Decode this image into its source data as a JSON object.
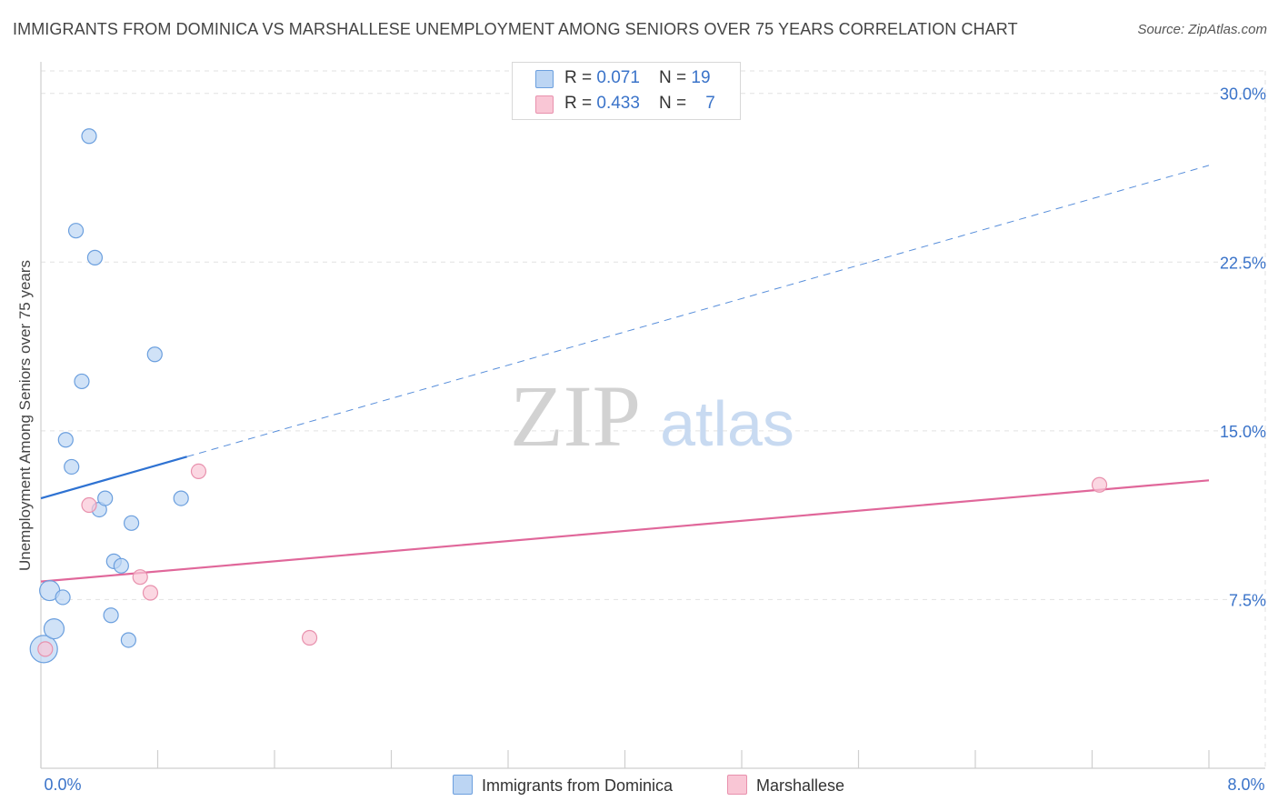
{
  "title": "IMMIGRANTS FROM DOMINICA VS MARSHALLESE UNEMPLOYMENT AMONG SENIORS OVER 75 YEARS CORRELATION CHART",
  "source": "Source: ZipAtlas.com",
  "watermark": {
    "zip": "ZIP",
    "atlas": "atlas"
  },
  "colors": {
    "blue_fill": "#bcd5f3",
    "blue_stroke": "#6b9fde",
    "blue_line": "#2e72d2",
    "pink_fill": "#f9c6d5",
    "pink_stroke": "#e891ad",
    "pink_line": "#e0679a",
    "tick_label": "#3a73c9",
    "grid": "#e2e2e2"
  },
  "legend_top": [
    {
      "r_label": "R = ",
      "r_value": "0.071",
      "n_label": "N = ",
      "n_value": "19"
    },
    {
      "r_label": "R = ",
      "r_value": "0.433",
      "n_label": "N = ",
      "n_value": "7"
    }
  ],
  "legend_bottom": [
    "Immigrants from Dominica",
    "Marshallese"
  ],
  "chart_data": {
    "type": "scatter",
    "xlabel": "",
    "ylabel": "Unemployment Among Seniors over 75 years",
    "xlim": [
      0,
      8
    ],
    "ylim": [
      0,
      31
    ],
    "x_tick_labels": [
      "0.0%",
      "8.0%"
    ],
    "y_ticks": [
      7.5,
      15.0,
      22.5,
      30.0
    ],
    "y_tick_labels": [
      "7.5%",
      "15.0%",
      "22.5%",
      "30.0%"
    ],
    "grid": true,
    "legend_position": "top-center",
    "series": [
      {
        "name": "Immigrants from Dominica",
        "color": "blue",
        "points": [
          {
            "x": 0.02,
            "y": 5.3,
            "s": 3
          },
          {
            "x": 0.06,
            "y": 7.9,
            "s": 2
          },
          {
            "x": 0.09,
            "y": 6.2,
            "s": 2
          },
          {
            "x": 0.15,
            "y": 7.6,
            "s": 1
          },
          {
            "x": 0.17,
            "y": 14.6,
            "s": 1
          },
          {
            "x": 0.21,
            "y": 13.4,
            "s": 1
          },
          {
            "x": 0.24,
            "y": 23.9,
            "s": 1
          },
          {
            "x": 0.28,
            "y": 17.2,
            "s": 1
          },
          {
            "x": 0.33,
            "y": 28.1,
            "s": 1
          },
          {
            "x": 0.37,
            "y": 22.7,
            "s": 1
          },
          {
            "x": 0.4,
            "y": 11.5,
            "s": 1
          },
          {
            "x": 0.44,
            "y": 12.0,
            "s": 1
          },
          {
            "x": 0.48,
            "y": 6.8,
            "s": 1
          },
          {
            "x": 0.5,
            "y": 9.2,
            "s": 1
          },
          {
            "x": 0.55,
            "y": 9.0,
            "s": 1
          },
          {
            "x": 0.6,
            "y": 5.7,
            "s": 1
          },
          {
            "x": 0.62,
            "y": 10.9,
            "s": 1
          },
          {
            "x": 0.78,
            "y": 18.4,
            "s": 1
          },
          {
            "x": 0.96,
            "y": 12.0,
            "s": 1
          }
        ],
        "trend": {
          "x0": 0.0,
          "y0": 12.0,
          "x_solid_end": 1.0,
          "x1": 8.0,
          "y1": 26.8
        }
      },
      {
        "name": "Marshallese",
        "color": "pink",
        "points": [
          {
            "x": 0.03,
            "y": 5.3,
            "s": 1
          },
          {
            "x": 0.33,
            "y": 11.7,
            "s": 1
          },
          {
            "x": 0.68,
            "y": 8.5,
            "s": 1
          },
          {
            "x": 0.75,
            "y": 7.8,
            "s": 1
          },
          {
            "x": 1.08,
            "y": 13.2,
            "s": 1
          },
          {
            "x": 1.84,
            "y": 5.8,
            "s": 1
          },
          {
            "x": 7.25,
            "y": 12.6,
            "s": 1
          }
        ],
        "trend": {
          "x0": 0.0,
          "y0": 8.3,
          "x1": 8.0,
          "y1": 12.8
        }
      }
    ]
  }
}
